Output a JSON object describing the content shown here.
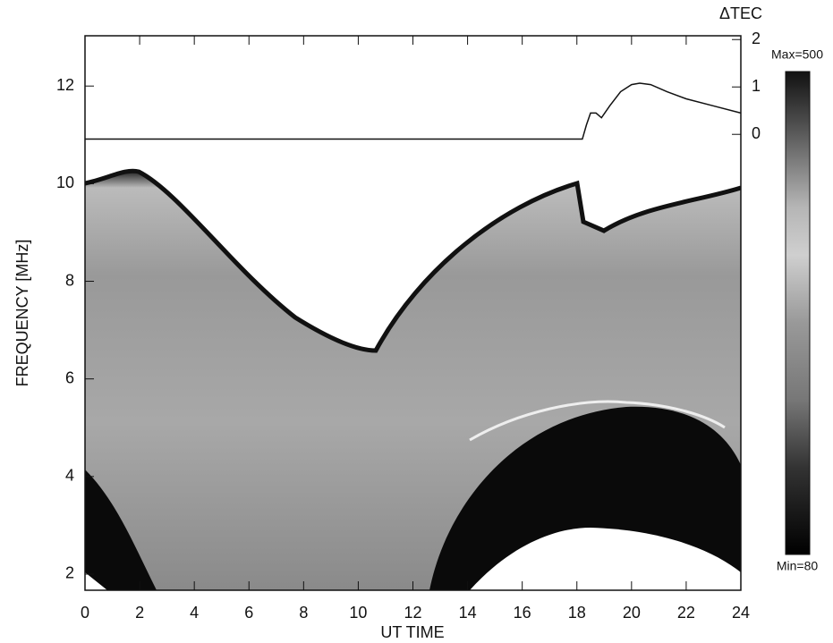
{
  "chart_data": {
    "type": "line",
    "xlabel": "UT TIME",
    "ylabel": "FREQUENCY [MHz]",
    "y2label": "ΔTEC",
    "xlim": [
      0,
      24
    ],
    "xticks": [
      0,
      2,
      4,
      6,
      8,
      10,
      12,
      14,
      16,
      18,
      20,
      22,
      24
    ],
    "ylim": [
      1.67,
      13.03
    ],
    "yticks": [
      2,
      4,
      6,
      8,
      10,
      12
    ],
    "y2lim": [
      -9.62,
      2.08
    ],
    "y2ticks": [
      0,
      1,
      2
    ],
    "x": [
      0,
      18.2,
      18.35,
      18.5,
      18.7,
      18.9,
      19.2,
      19.6,
      20,
      20.3,
      20.7,
      21.3,
      22,
      23,
      24
    ],
    "series": [
      {
        "color": "#111111",
        "axis": "y2",
        "values": [
          -0.1,
          -0.1,
          0.2,
          0.45,
          0.45,
          0.35,
          0.6,
          0.9,
          1.05,
          1.08,
          1.05,
          0.9,
          0.75,
          0.6,
          0.45
        ]
      }
    ],
    "colorbar": {
      "max_label": "Max=500",
      "min_label": "Min=80"
    }
  }
}
